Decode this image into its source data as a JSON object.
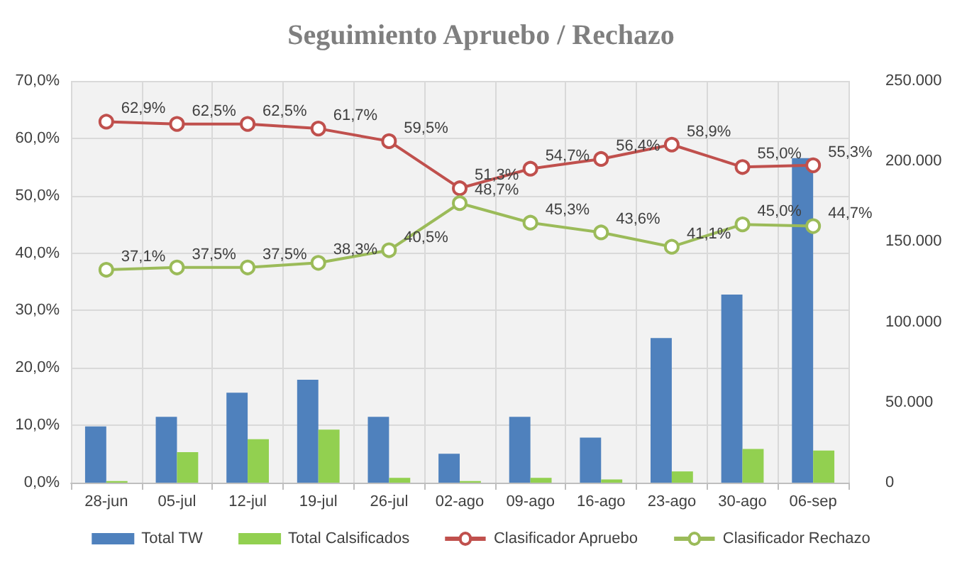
{
  "chart_data": {
    "type": "bar",
    "title": "Seguimiento Apruebo / Rechazo",
    "categories": [
      "28-jun",
      "05-jul",
      "12-jul",
      "19-jul",
      "26-jul",
      "02-ago",
      "09-ago",
      "16-ago",
      "23-ago",
      "30-ago",
      "06-sep"
    ],
    "series": [
      {
        "name": "Total TW",
        "axis": "y2",
        "color": "#4f81bd",
        "values": [
          35000,
          41000,
          56000,
          64000,
          41000,
          18000,
          41000,
          28000,
          90000,
          117000,
          202000
        ]
      },
      {
        "name": "Total Calsificados",
        "axis": "y2",
        "color": "#92d050",
        "values": [
          1000,
          19000,
          27000,
          33000,
          3000,
          1000,
          3000,
          2000,
          7000,
          21000,
          20000
        ]
      },
      {
        "name": "Clasificador Apruebo",
        "type": "line",
        "color": "#c0504d",
        "values": [
          62.9,
          62.5,
          62.5,
          61.7,
          59.5,
          51.3,
          54.7,
          56.4,
          58.9,
          55.0,
          55.3
        ],
        "value_labels": [
          "62,9%",
          "62,5%",
          "62,5%",
          "61,7%",
          "59,5%",
          "51,3%",
          "54,7%",
          "56,4%",
          "58,9%",
          "55,0%",
          "55,3%"
        ]
      },
      {
        "name": "Clasificador Rechazo",
        "type": "line",
        "color": "#9bbb59",
        "values": [
          37.1,
          37.5,
          37.5,
          38.3,
          40.5,
          48.7,
          45.3,
          43.6,
          41.1,
          45.0,
          44.7
        ],
        "value_labels": [
          "37,1%",
          "37,5%",
          "37,5%",
          "38,3%",
          "40,5%",
          "48,7%",
          "45,3%",
          "43,6%",
          "41,1%",
          "45,0%",
          "44,7%"
        ]
      }
    ],
    "ylim": [
      0,
      70
    ],
    "yticks": [
      {
        "value": 0,
        "label": "0,0%"
      },
      {
        "value": 10,
        "label": "10,0%"
      },
      {
        "value": 20,
        "label": "20,0%"
      },
      {
        "value": 30,
        "label": "30,0%"
      },
      {
        "value": 40,
        "label": "40,0%"
      },
      {
        "value": 50,
        "label": "50,0%"
      },
      {
        "value": 60,
        "label": "60,0%"
      },
      {
        "value": 70,
        "label": "70,0%"
      }
    ],
    "y2lim": [
      0,
      250000
    ],
    "y2ticks": [
      {
        "value": 0,
        "label": "0"
      },
      {
        "value": 50000,
        "label": "50.000"
      },
      {
        "value": 100000,
        "label": "100.000"
      },
      {
        "value": 150000,
        "label": "150.000"
      },
      {
        "value": 200000,
        "label": "200.000"
      },
      {
        "value": 250000,
        "label": "250.000"
      }
    ],
    "grid": true,
    "legend": "bottom",
    "marker": "circle",
    "line_style": "solid"
  }
}
